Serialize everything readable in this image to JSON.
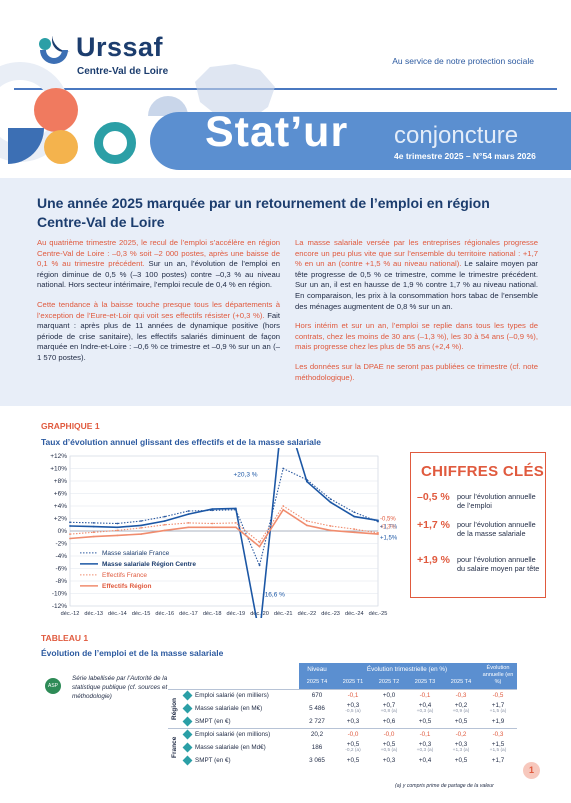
{
  "header": {
    "brand": "Urssaf",
    "region": "Centre-Val de Loire",
    "tagline": "Au service de notre protection sociale",
    "publication": "Stat’ur",
    "series": "conjoncture",
    "issue": "4e trimestre 2025 – N°54 mars 2026"
  },
  "intro": {
    "title": "Une année 2025 marquée par un retournement de l’emploi en région Centre-Val de Loire",
    "left": {
      "p1_accent": "Au quatrième trimestre 2025, le recul de l’emploi s’accélère en région Centre-Val de Loire : –0,3 % soit –2 000 postes, après une baisse de 0,1 % au trimestre précédent.",
      "p1_rest": " Sur un an, l’évolution de l’emploi en région diminue de 0,5 % (–3 100 postes) contre –0,3 % au niveau national. Hors secteur intérimaire, l’emploi recule de 0,4 % en région.",
      "p2_accent": "Cette tendance à la baisse touche presque tous les départements à l’exception de l’Eure-et-Loir qui voit ses effectifs résister (+0,3 %).",
      "p2_rest": " Fait marquant : après plus de 11 années de dynamique positive (hors période de crise sanitaire), les effectifs salariés diminuent de façon marquée en Indre-et-Loire : –0,6 % ce trimestre et –0,9 % sur un an (–1 570 postes)."
    },
    "right": {
      "p1_accent": "La masse salariale versée par les entreprises régionales progresse encore un peu plus vite que sur l’ensemble du territoire national : +1,7 % en un an (contre +1,5 % au niveau national).",
      "p1_rest": " Le salaire moyen par tête progresse de 0,5 % ce trimestre, comme le trimestre précédent. Sur un an, il est en hausse de 1,9 % contre 1,7 % au niveau national. En comparaison, les prix à la consommation hors tabac de l’ensemble des ménages augmentent de 0,8 % sur un an.",
      "p2_accent": "Hors intérim et sur un an, l’emploi se replie dans tous les types de contrats, chez les moins de 30 ans (–1,3 %), les 30 à 54 ans (–0,9 %), mais progresse chez les plus de 55 ans (+2,4 %).",
      "p3_accent": "Les données sur la DPAE ne seront pas publiées ce trimestre (cf. note méthodologique)."
    }
  },
  "graph": {
    "label": "GRAPHIQUE 1",
    "title": "Taux d’évolution annuel glissant des effectifs et de la masse salariale"
  },
  "chart_data": {
    "type": "line",
    "title": "Taux d’évolution annuel glissant des effectifs et de la masse salariale",
    "x": [
      "déc.-12",
      "déc.-13",
      "déc.-14",
      "déc.-15",
      "déc.-16",
      "déc.-17",
      "déc.-18",
      "déc.-19",
      "déc.-20",
      "déc.-21",
      "déc.-22",
      "déc.-23",
      "déc.-24",
      "déc.-25"
    ],
    "ylim": [
      -12,
      12
    ],
    "yticks": [
      "+12%",
      "+10%",
      "+8%",
      "+6%",
      "+4%",
      "+2%",
      "0%",
      "-2%",
      "-4%",
      "-6%",
      "-8%",
      "-10%",
      "-12%"
    ],
    "grid": true,
    "legend_position": "bottom-left",
    "series": [
      {
        "name": "Masse salariale France",
        "style": "dotted",
        "color": "#2c5aa0",
        "values": [
          1.4,
          1.3,
          1.2,
          1.6,
          2.3,
          3.2,
          3.3,
          3.4,
          -5.5,
          10.0,
          8.2,
          5.1,
          3.0,
          1.5
        ]
      },
      {
        "name": "Masse salariale Région Centre",
        "style": "solid",
        "color": "#1c57a5",
        "values": [
          0.8,
          0.7,
          0.6,
          0.9,
          1.6,
          2.7,
          3.5,
          3.6,
          -16.6,
          20.3,
          7.9,
          4.6,
          2.3,
          1.7
        ]
      },
      {
        "name": "Effectifs France",
        "style": "dotted",
        "color": "#f08c6e",
        "values": [
          -0.5,
          -0.2,
          0.1,
          0.5,
          1.0,
          1.3,
          1.2,
          1.3,
          -1.8,
          4.0,
          1.6,
          0.8,
          0.3,
          -0.3
        ]
      },
      {
        "name": "Effectifs Région",
        "style": "solid",
        "color": "#f08c6e",
        "values": [
          -1.2,
          -0.9,
          -0.7,
          -0.5,
          0.1,
          0.6,
          0.6,
          0.6,
          -2.5,
          3.4,
          0.9,
          0.1,
          -0.2,
          -0.5
        ]
      }
    ],
    "annotations": [
      "+20,3 %",
      "-16,6 %",
      "+1,5%",
      "+1,7%",
      "-0,3%",
      "-0,5%"
    ]
  },
  "key_figures": {
    "title": "CHIFFRES CLÉS",
    "items": [
      {
        "value": "–0,5 %",
        "desc": "pour l’évolution annuelle de l’emploi"
      },
      {
        "value": "+1,7 %",
        "desc": "pour l’évolution annuelle de la masse salariale"
      },
      {
        "value": "+1,9 %",
        "desc": "pour l’évolution annuelle du salaire moyen par tête"
      }
    ]
  },
  "table": {
    "label": "TABLEAU 1",
    "title": "Évolution de l’emploi et de la masse salariale",
    "badge": "ASP",
    "certification": "Série labellisée par l’Autorité de la statistique publique (cf. sources et méthodologie)",
    "head": {
      "niveau": "Niveau",
      "trim": "Évolution trimestrielle (en %)",
      "annuelle": "Évolution annuelle (en %)",
      "c_t4": "2025 T4",
      "c_t1": "2025 T1",
      "c_t2": "2025 T2",
      "c_t3": "2025 T3",
      "c_t4b": "2025 T4",
      "c_ann": "2025 T4"
    },
    "groups": [
      {
        "name": "Région",
        "rows": [
          {
            "label": "Emploi salarié (en milliers)",
            "lvl": "670",
            "t1": "-0,1",
            "t2": "+0,0",
            "t3": "-0,1",
            "t4": "-0,3",
            "ann": "-0,5",
            "s": [
              "",
              "",
              "",
              "",
              ""
            ]
          },
          {
            "label": "Masse salariale (en M€)",
            "lvl": "5 486",
            "t1": "+0,3",
            "t2": "+0,7",
            "t3": "+0,4",
            "t4": "+0,2",
            "ann": "+1,7",
            "s": [
              "-0,5 (a)",
              "+0,8 (a)",
              "+0,3 (a)",
              "+0,9 (a)",
              "+1,5 (a)"
            ]
          },
          {
            "label": "SMPT (en €)",
            "lvl": "2 727",
            "t1": "+0,3",
            "t2": "+0,6",
            "t3": "+0,5",
            "t4": "+0,5",
            "ann": "+1,9",
            "s": [
              "",
              "",
              "",
              "",
              ""
            ]
          }
        ]
      },
      {
        "name": "France",
        "rows": [
          {
            "label": "Emploi salarié (en millions)",
            "lvl": "20,2",
            "t1": "-0,0",
            "t2": "-0,0",
            "t3": "-0,1",
            "t4": "-0,2",
            "ann": "-0,3",
            "s": [
              "",
              "",
              "",
              "",
              ""
            ]
          },
          {
            "label": "Masse salariale (en Md€)",
            "lvl": "186",
            "t1": "+0,5",
            "t2": "+0,5",
            "t3": "+0,3",
            "t4": "+0,3",
            "ann": "+1,5",
            "s": [
              "-0,2 (a)",
              "+0,5 (a)",
              "+0,3 (a)",
              "+1,3 (a)",
              "+1,5 (a)"
            ]
          },
          {
            "label": "SMPT (en €)",
            "lvl": "3 065",
            "t1": "+0,5",
            "t2": "+0,3",
            "t3": "+0,4",
            "t4": "+0,5",
            "ann": "+1,7",
            "s": [
              "",
              "",
              "",
              "",
              ""
            ]
          }
        ]
      }
    ],
    "note": "(a) y compris prime de partage de la valeur"
  },
  "page_number": "1"
}
